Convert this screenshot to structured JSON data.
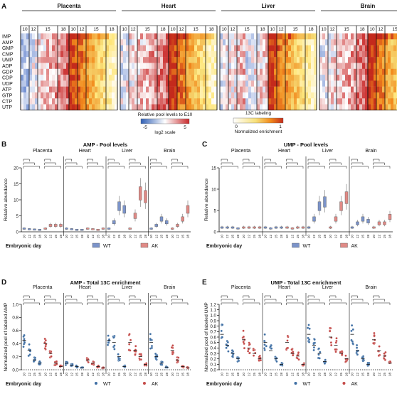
{
  "panels": {
    "A": {
      "letter": "A",
      "tissues": [
        "Placenta",
        "Heart",
        "Liver",
        "Brain"
      ],
      "days": [
        "10",
        "12",
        "15",
        "18"
      ],
      "metabolites": [
        "IMP",
        "AMP",
        "GMP",
        "CMP",
        "UMP",
        "ADP",
        "GDP",
        "CDP",
        "UDP",
        "ATP",
        "GTP",
        "CTP",
        "UTP"
      ],
      "legend_pool": {
        "title": "Relative pool levels to E10",
        "min": "-5",
        "max": "5",
        "scale": "log2 scale"
      },
      "legend_label": {
        "title": "13C labeling",
        "min": "0",
        "max": "1",
        "caption": "Normalized enrichment"
      }
    },
    "B": {
      "letter": "B",
      "title": "AMP - Pool levels",
      "ylabel": "Relative abundance",
      "xlabel": "Embryonic day",
      "yticks": [
        "0",
        "5",
        "10",
        "15",
        "20"
      ]
    },
    "C": {
      "letter": "C",
      "title": "UMP - Pool levels",
      "ylabel": "Relative abundance",
      "xlabel": "Embryonic day",
      "yticks": [
        "0",
        "5",
        "10",
        "15"
      ]
    },
    "D": {
      "letter": "D",
      "title": "AMP - Total 13C enrichment",
      "ylabel": "Normalized pool of labeled AMP",
      "xlabel": "Embryonic day",
      "yticks": [
        "0.0",
        "0.2",
        "0.4",
        "0.6",
        "0.8",
        "1.0"
      ]
    },
    "E": {
      "letter": "E",
      "title": "UMP - Total 13C enrichment",
      "ylabel": "Normalized pool of labeled UMP",
      "xlabel": "Embryonic day",
      "yticks": [
        "0.0",
        "0.1",
        "0.2",
        "0.3",
        "0.4",
        "0.5",
        "0.6",
        "0.7",
        "0.8",
        "0.9",
        "1.0",
        "1.1",
        "1.2"
      ]
    }
  },
  "legend": {
    "wt": "WT",
    "ak": "AK"
  },
  "colors": {
    "wt": "#7b93c9",
    "ak": "#e08a86",
    "wt_dot": "#3f6fa4",
    "ak_dot": "#c44a48"
  },
  "chart_data": [
    {
      "type": "box",
      "title": "AMP - Pool levels",
      "ylabel": "Relative abundance",
      "xlabel": "Embryonic day",
      "ylim": [
        0,
        20
      ],
      "categories": [
        "Placenta",
        "Heart",
        "Liver",
        "Brain"
      ],
      "x": [
        "10",
        "12",
        "15",
        "18"
      ],
      "series": [
        {
          "name": "WT",
          "values": [
            [
              1,
              0.8,
              0.7,
              0.6
            ],
            [
              1,
              0.8,
              0.6,
              0.6
            ],
            [
              1,
              3,
              8,
              7
            ],
            [
              1,
              2,
              4,
              3
            ]
          ]
        },
        {
          "name": "AK",
          "values": [
            [
              1,
              2,
              2,
              2
            ],
            [
              1,
              0.8,
              0.6,
              1
            ],
            [
              1,
              5,
              12,
              11
            ],
            [
              1,
              2,
              4,
              7
            ]
          ]
        }
      ]
    },
    {
      "type": "box",
      "title": "UMP - Pool levels",
      "ylabel": "Relative abundance",
      "xlabel": "Embryonic day",
      "ylim": [
        0,
        15
      ],
      "categories": [
        "Placenta",
        "Heart",
        "Liver",
        "Brain"
      ],
      "x": [
        "10",
        "12",
        "15",
        "18"
      ],
      "series": [
        {
          "name": "WT",
          "values": [
            [
              1,
              1,
              1,
              0.8
            ],
            [
              1,
              0.8,
              1,
              1
            ],
            [
              1,
              3,
              6,
              7
            ],
            [
              1,
              2,
              3,
              2.5
            ]
          ]
        },
        {
          "name": "AK",
          "values": [
            [
              1,
              1,
              1,
              1
            ],
            [
              1,
              0.8,
              1,
              1
            ],
            [
              1,
              3,
              6,
              8
            ],
            [
              1,
              2,
              2,
              3.5
            ]
          ]
        }
      ]
    },
    {
      "type": "scatter",
      "title": "AMP - Total 13C enrichment",
      "ylabel": "Normalized pool of labeled AMP",
      "xlabel": "Embryonic day",
      "ylim": [
        0,
        1.0
      ],
      "categories": [
        "Placenta",
        "Heart",
        "Liver",
        "Brain"
      ],
      "x": [
        "10",
        "12",
        "15",
        "18"
      ],
      "series": [
        {
          "name": "WT",
          "values": [
            [
              0.45,
              0.3,
              0.15,
              0.1
            ],
            [
              0.1,
              0.07,
              0.05,
              0.03
            ],
            [
              0.45,
              0.42,
              0.2,
              0.05
            ],
            [
              0.42,
              0.2,
              0.1,
              0.04
            ]
          ]
        },
        {
          "name": "AK",
          "values": [
            [
              0.4,
              0.25,
              0.1,
              0.05
            ],
            [
              0.15,
              0.1,
              0.05,
              0.03
            ],
            [
              0.42,
              0.3,
              0.2,
              0.08
            ],
            [
              0.3,
              0.15,
              0.05,
              0.03
            ]
          ]
        }
      ]
    },
    {
      "type": "scatter",
      "title": "UMP - Total 13C enrichment",
      "ylabel": "Normalized pool of labeled UMP",
      "xlabel": "Embryonic day",
      "ylim": [
        0,
        1.2
      ],
      "categories": [
        "Placenta",
        "Heart",
        "Liver",
        "Brain"
      ],
      "x": [
        "10",
        "12",
        "15",
        "18"
      ],
      "series": [
        {
          "name": "WT",
          "values": [
            [
              0.65,
              0.45,
              0.3,
              0.2
            ],
            [
              0.5,
              0.35,
              0.2,
              0.1
            ],
            [
              0.65,
              0.45,
              0.3,
              0.15
            ],
            [
              0.65,
              0.35,
              0.2,
              0.1
            ]
          ]
        },
        {
          "name": "AK",
          "values": [
            [
              0.55,
              0.4,
              0.3,
              0.2
            ],
            [
              0.5,
              0.3,
              0.25,
              0.1
            ],
            [
              0.6,
              0.45,
              0.3,
              0.2
            ],
            [
              0.55,
              0.35,
              0.25,
              0.12
            ]
          ]
        }
      ]
    }
  ]
}
